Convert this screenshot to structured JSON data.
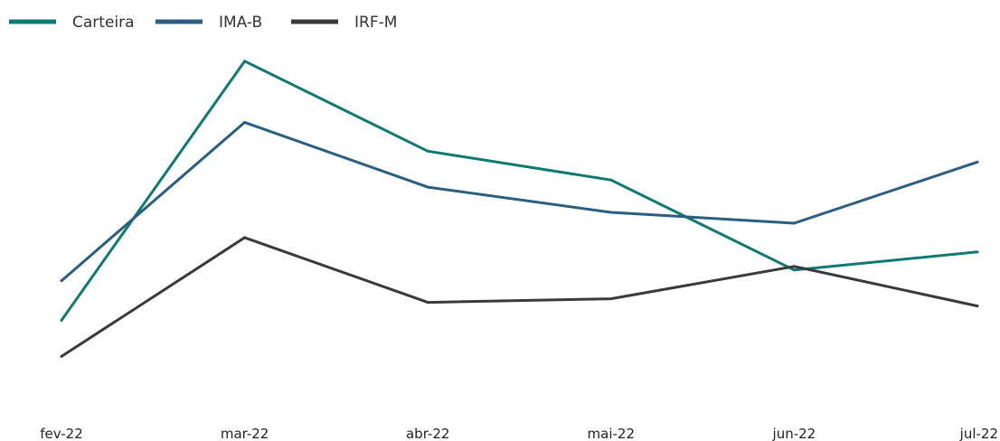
{
  "chart_data": {
    "type": "line",
    "title": "",
    "xlabel": "",
    "ylabel": "",
    "categories": [
      "fev-22",
      "mar-22",
      "abr-22",
      "mai-22",
      "jun-22",
      "jul-22"
    ],
    "ylim": [
      0,
      120
    ],
    "grid": false,
    "legend_position": "top-left",
    "series": [
      {
        "name": "Carteira",
        "color": "#0E7A72",
        "values": [
          31,
          103,
          78,
          70,
          45,
          50
        ]
      },
      {
        "name": "IMA-B",
        "color": "#2B5F82",
        "values": [
          42,
          86,
          68,
          61,
          58,
          75
        ]
      },
      {
        "name": "IRF-M",
        "color": "#3A3A3A",
        "values": [
          21,
          54,
          36,
          37,
          46,
          35
        ]
      }
    ]
  }
}
